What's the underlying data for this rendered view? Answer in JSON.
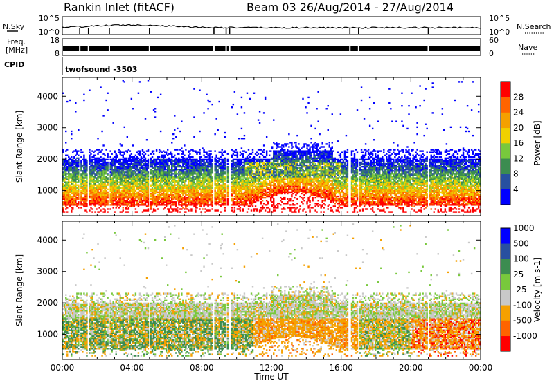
{
  "header": {
    "station": "Rankin Inlet (fitACF)",
    "beam_period": "Beam 03  26/Aug/2014 - 27/Aug/2014"
  },
  "panels": {
    "nsky": {
      "left_label": "N.Sky",
      "right_label": "N.Search",
      "left_top": "10^5",
      "left_bot": "10^0",
      "right_top": "10^5",
      "right_bot": "10^0"
    },
    "freq": {
      "left_label_1": "Freq.",
      "left_label_2": "[MHz]",
      "right_label": "Nave",
      "left_top": "18",
      "left_bot": "8",
      "right_top": "60",
      "right_bot": "0"
    },
    "cpid": {
      "label": "CPID",
      "value": "twofsound  -3503"
    }
  },
  "colors": {
    "power": [
      "#0000ff",
      "#2850a0",
      "#3c8c50",
      "#78c83c",
      "#f0d000",
      "#f5a000",
      "#ff6400",
      "#ff0000"
    ],
    "velocity": [
      "#ff0000",
      "#ff6400",
      "#f5a000",
      "#c8c8c8",
      "#78c83c",
      "#3c8c50",
      "#2850a0",
      "#0000ff"
    ]
  },
  "chart_data": [
    {
      "type": "heatmap",
      "name": "power",
      "ylabel": "Slant Range [km]",
      "ylim": [
        200,
        4600
      ],
      "yticks": [
        1000,
        2000,
        3000,
        4000
      ],
      "xlim_hours": [
        0,
        24
      ],
      "colorbar": {
        "label": "Power [dB]",
        "ticks": [
          "4",
          "8",
          "12",
          "16",
          "20",
          "24",
          "28"
        ]
      }
    },
    {
      "type": "heatmap",
      "name": "velocity",
      "ylabel": "Slant Range [km]",
      "ylim": [
        200,
        4600
      ],
      "yticks": [
        1000,
        2000,
        3000,
        4000
      ],
      "xlim_hours": [
        0,
        24
      ],
      "colorbar": {
        "label": "Velocity [m s-1]",
        "ticks": [
          "-1000",
          "-500",
          "-100",
          "-25",
          "25",
          "100",
          "500",
          "1000"
        ]
      }
    }
  ],
  "x_axis": {
    "label": "Time UT",
    "ticks": [
      "00:00",
      "04:00",
      "08:00",
      "12:00",
      "16:00",
      "20:00",
      "00:00"
    ]
  }
}
